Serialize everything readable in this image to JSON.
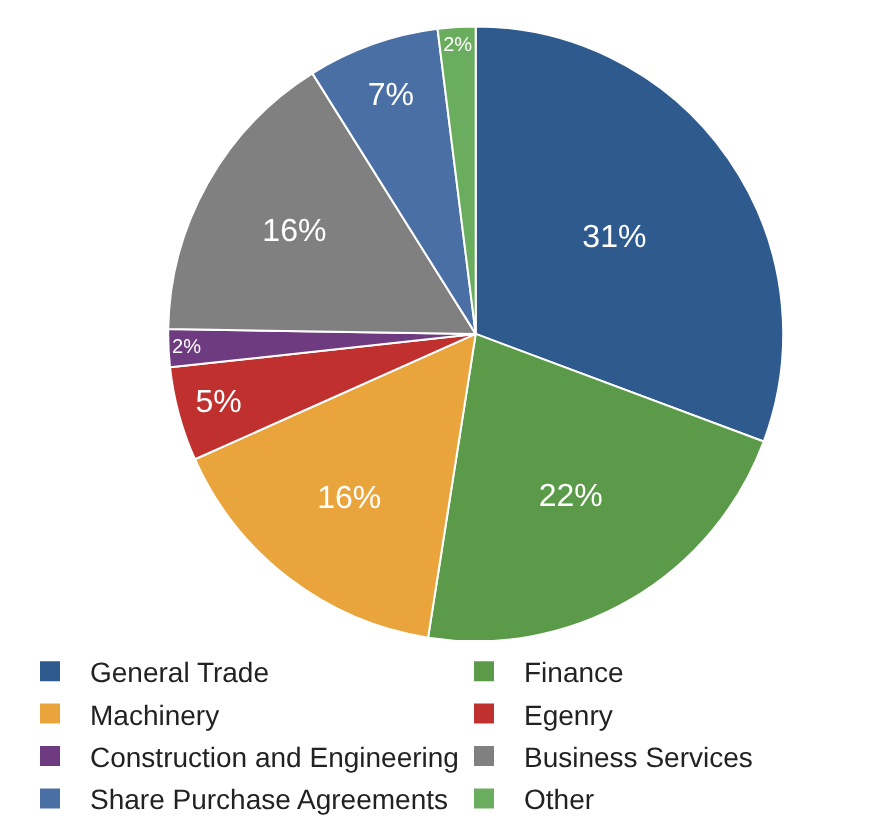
{
  "chart_data": {
    "type": "pie",
    "categories": [
      "General Trade",
      "Finance",
      "Machinery",
      "Egenry",
      "Construction and Engineering",
      "Business Services",
      "Share Purchase Agreements",
      "Other"
    ],
    "values": [
      31,
      22,
      16,
      5,
      2,
      16,
      7,
      2
    ],
    "colors": [
      "#2e5a8e",
      "#5a9a48",
      "#eaa43c",
      "#c0302f",
      "#6e3a80",
      "#808080",
      "#4a6fa5",
      "#6aad5e"
    ],
    "value_labels": [
      "31%",
      "22%",
      "16%",
      "5%",
      "2%",
      "16%",
      "7%",
      "2%"
    ],
    "legend": "bottom"
  }
}
